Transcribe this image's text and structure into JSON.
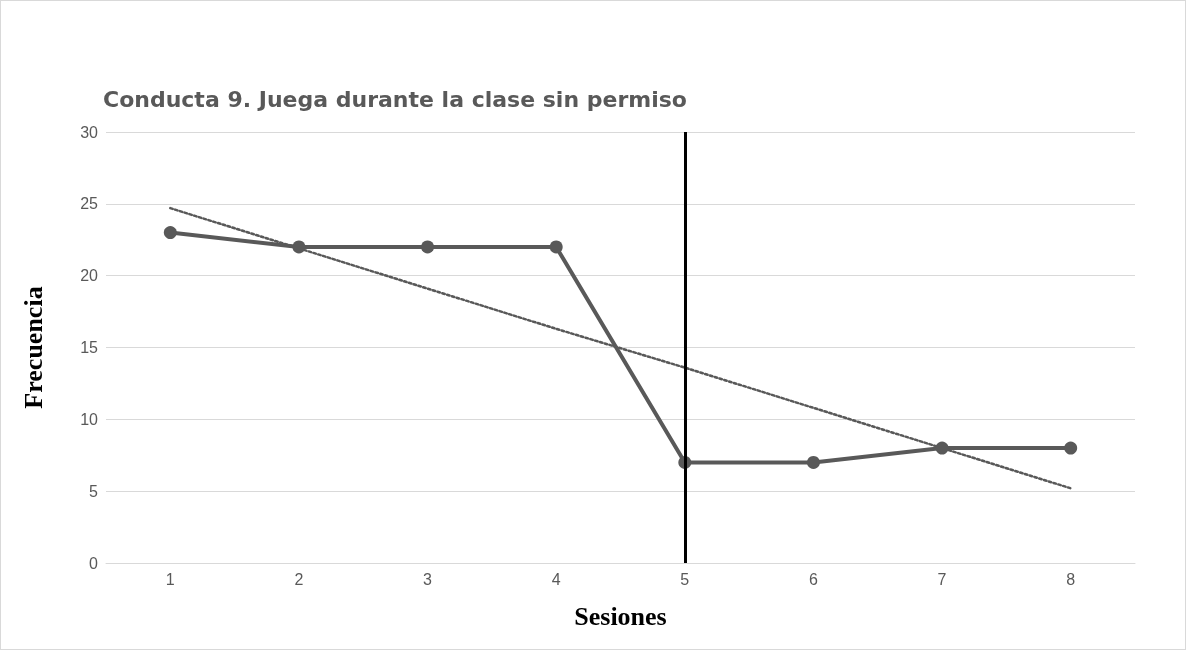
{
  "chart_data": {
    "type": "line",
    "title": "Conducta 9. Juega durante la clase sin permiso",
    "xlabel": "Sesiones",
    "ylabel": "Frecuencia",
    "categories": [
      "1",
      "2",
      "3",
      "4",
      "5",
      "6",
      "7",
      "8"
    ],
    "series": [
      {
        "color": "#595959",
        "marker": "circle",
        "line_style": "solid",
        "values": [
          23,
          22,
          22,
          22,
          7,
          7,
          8,
          8
        ]
      },
      {
        "color": "#595959",
        "marker": "none",
        "line_style": "dotted",
        "values": [
          24.7,
          21.9,
          19.1,
          16.3,
          13.6,
          10.8,
          8.0,
          5.2
        ]
      }
    ],
    "ylim": [
      0,
      30
    ],
    "yticks": [
      0,
      5,
      10,
      15,
      20,
      25,
      30
    ],
    "grid": "y",
    "ref_lines": [
      {
        "axis": "x",
        "value": "5",
        "color": "#000000",
        "line_style": "solid"
      }
    ]
  }
}
